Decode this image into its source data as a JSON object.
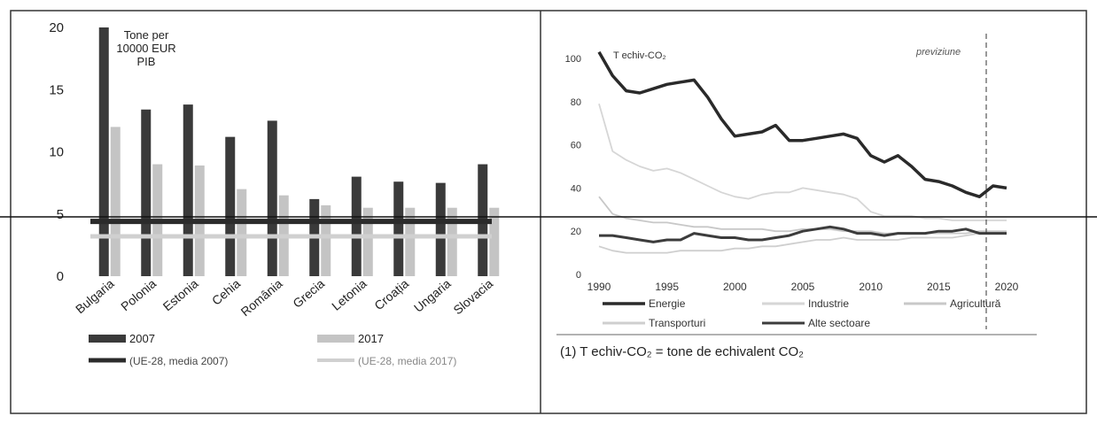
{
  "colors": {
    "series_2007": "#3a3a3a",
    "series_2017": "#c4c4c4",
    "avg_2007": "#2b2b2b",
    "avg_2017": "#d0d0d0",
    "energie": "#2a2a2a",
    "industrie": "#d6d6d6",
    "agricultura": "#c8c8c8",
    "transporturi": "#cfcfcf",
    "alte_sectoare": "#3c3c3c",
    "frame": "#333333"
  },
  "chart_data": [
    {
      "type": "bar",
      "unit_label": "Tone per\n10000 EUR\nPIB",
      "categories": [
        "Bulgaria",
        "Polonia",
        "Estonia",
        "Cehia",
        "România",
        "Grecia",
        "Letonia",
        "Croația",
        "Ungaria",
        "Slovacia"
      ],
      "series": [
        {
          "name": "2007",
          "values": [
            20,
            13.4,
            13.8,
            11.2,
            12.5,
            6.2,
            8.0,
            7.6,
            7.5,
            9.0
          ]
        },
        {
          "name": "2017",
          "values": [
            12.0,
            9.0,
            8.9,
            7.0,
            6.5,
            5.7,
            5.5,
            5.5,
            5.5,
            5.5
          ]
        }
      ],
      "reference_lines": [
        {
          "name": "(UE-28, media 2007)",
          "value": 4.4
        },
        {
          "name": "(UE-28, media 2017)",
          "value": 3.2
        }
      ],
      "ylim": [
        0,
        20
      ],
      "yticks": [
        0,
        5,
        10,
        15,
        20
      ],
      "legend": [
        "2007",
        "2017",
        "(UE-28, media 2007)",
        "(UE-28, media 2017)"
      ]
    },
    {
      "type": "line",
      "unit_label": "T echiv-CO₂",
      "annotation": "previziune",
      "forecast_from": 2018.5,
      "xlim": [
        1990,
        2020
      ],
      "xticks": [
        1990,
        1995,
        2000,
        2005,
        2010,
        2015,
        2020
      ],
      "ylim": [
        0,
        100
      ],
      "yticks": [
        0,
        20,
        40,
        60,
        80,
        100
      ],
      "x": [
        1990,
        1991,
        1992,
        1993,
        1994,
        1995,
        1996,
        1997,
        1998,
        1999,
        2000,
        2001,
        2002,
        2003,
        2004,
        2005,
        2006,
        2007,
        2008,
        2009,
        2010,
        2011,
        2012,
        2013,
        2014,
        2015,
        2016,
        2017,
        2018,
        2019,
        2020
      ],
      "series": [
        {
          "name": "Energie",
          "values": [
            103,
            92,
            85,
            84,
            86,
            88,
            89,
            90,
            82,
            72,
            64,
            65,
            66,
            69,
            62,
            62,
            63,
            64,
            65,
            63,
            55,
            52,
            55,
            50,
            44,
            43,
            41,
            38,
            36,
            41,
            40
          ]
        },
        {
          "name": "Industrie",
          "values": [
            79,
            57,
            53,
            50,
            48,
            49,
            47,
            44,
            41,
            38,
            36,
            35,
            37,
            38,
            38,
            40,
            39,
            38,
            37,
            35,
            29,
            27,
            27,
            27,
            26,
            26,
            25,
            25,
            25,
            25,
            25
          ]
        },
        {
          "name": "Agricultură",
          "values": [
            36,
            28,
            26,
            25,
            24,
            24,
            23,
            22,
            22,
            21,
            21,
            21,
            21,
            20,
            20,
            21,
            21,
            21,
            20,
            20,
            20,
            19,
            19,
            19,
            19,
            19,
            19,
            19,
            20,
            20,
            20
          ]
        },
        {
          "name": "Transporturi",
          "values": [
            13,
            11,
            10,
            10,
            10,
            10,
            11,
            11,
            11,
            11,
            12,
            12,
            13,
            13,
            14,
            15,
            16,
            16,
            17,
            16,
            16,
            16,
            16,
            17,
            17,
            17,
            17,
            18,
            19,
            19,
            19
          ]
        },
        {
          "name": "Alte sectoare",
          "values": [
            18,
            18,
            17,
            16,
            15,
            16,
            16,
            19,
            18,
            17,
            17,
            16,
            16,
            17,
            18,
            20,
            21,
            22,
            21,
            19,
            19,
            18,
            19,
            19,
            19,
            20,
            20,
            21,
            19,
            19,
            19
          ]
        }
      ],
      "footnote": "(1) T echiv-CO₂ = tone de echivalent CO₂"
    }
  ]
}
